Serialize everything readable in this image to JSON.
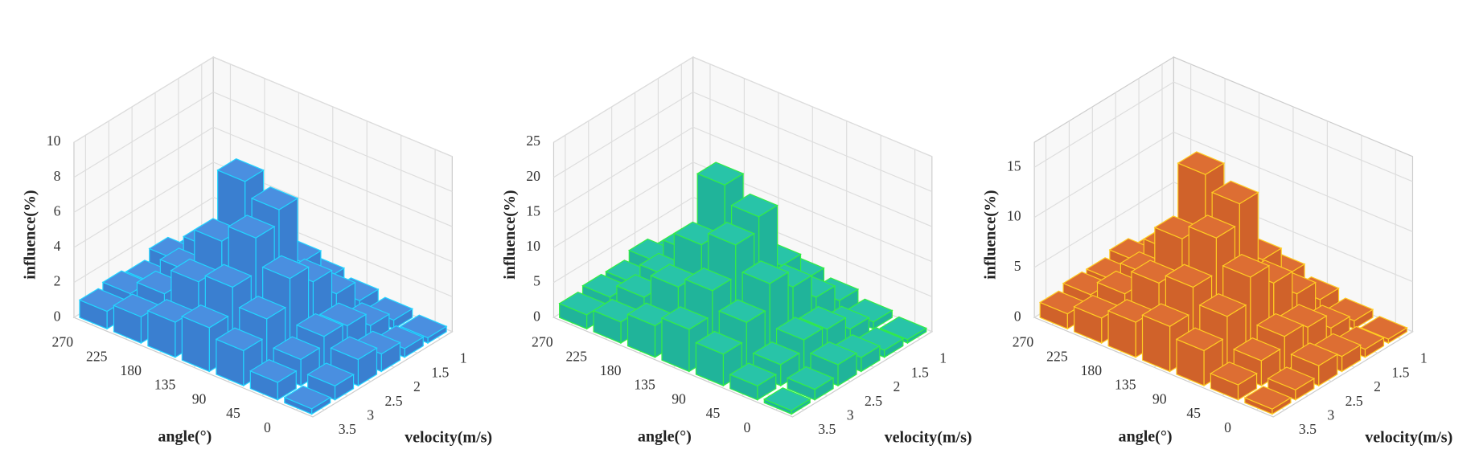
{
  "chart_data": [
    {
      "type": "bar3d",
      "x_label": "angle(°)",
      "y_label": "velocity(m/s)",
      "z_label": "influence(%)",
      "categories": [
        "0",
        "45",
        "90",
        "135",
        "180",
        "225",
        "270"
      ],
      "y_categories": [
        "3.5",
        "3",
        "2.5",
        "2",
        "1.5",
        "1"
      ],
      "values": [
        [
          0.3,
          1.0,
          2.0,
          2.5,
          2.0,
          1.5,
          1.0
        ],
        [
          0.8,
          1.5,
          3.0,
          4.0,
          3.5,
          2.0,
          1.2
        ],
        [
          1.5,
          2.0,
          4.5,
          6.0,
          5.0,
          2.5,
          1.0
        ],
        [
          1.0,
          1.8,
          3.5,
          6.8,
          7.6,
          3.0,
          1.5
        ],
        [
          0.5,
          1.0,
          2.0,
          3.0,
          3.2,
          1.5,
          0.8
        ],
        [
          0.3,
          0.5,
          0.8,
          1.2,
          1.0,
          0.6,
          0.4
        ]
      ],
      "zlim": [
        0,
        10
      ],
      "zticks": [
        0,
        2,
        4,
        6,
        8,
        10
      ],
      "color": "#3a7fd0",
      "top_color": "#4a8fe0",
      "edge_color": "#22d5ff"
    },
    {
      "type": "bar3d",
      "x_label": "angle(°)",
      "y_label": "velocity(m/s)",
      "z_label": "influence(%)",
      "categories": [
        "0",
        "45",
        "90",
        "135",
        "180",
        "225",
        "270"
      ],
      "y_categories": [
        "3.5",
        "3",
        "2.5",
        "2",
        "1.5",
        "1"
      ],
      "values": [
        [
          0.5,
          2.0,
          4.5,
          6.0,
          4.5,
          3.0,
          2.0
        ],
        [
          1.5,
          3.0,
          7.0,
          9.5,
          8.0,
          4.5,
          2.5
        ],
        [
          3.0,
          4.5,
          10.5,
          14.0,
          12.0,
          5.5,
          2.5
        ],
        [
          2.0,
          4.0,
          8.0,
          16.0,
          18.5,
          7.0,
          3.5
        ],
        [
          1.0,
          2.0,
          4.5,
          7.0,
          7.5,
          3.5,
          2.0
        ],
        [
          0.5,
          1.0,
          2.0,
          3.0,
          2.5,
          1.5,
          1.0
        ]
      ],
      "zlim": [
        0,
        25
      ],
      "zticks": [
        0,
        5,
        10,
        15,
        20,
        25
      ],
      "color": "#20b49a",
      "top_color": "#28c4a8",
      "edge_color": "#33ee44"
    },
    {
      "type": "bar3d",
      "x_label": "angle(°)",
      "y_label": "velocity(m/s)",
      "z_label": "influence(%)",
      "categories": [
        "0",
        "45",
        "90",
        "135",
        "180",
        "225",
        "270"
      ],
      "y_categories": [
        "3.5",
        "3",
        "2.5",
        "2",
        "1.5",
        "1"
      ],
      "values": [
        [
          0.5,
          1.5,
          3.5,
          4.5,
          3.5,
          2.5,
          1.5
        ],
        [
          1.0,
          2.5,
          5.5,
          7.0,
          6.0,
          3.5,
          2.0
        ],
        [
          2.0,
          3.5,
          8.0,
          10.5,
          9.0,
          4.0,
          2.0
        ],
        [
          1.5,
          3.0,
          6.0,
          12.5,
          14.0,
          5.0,
          2.5
        ],
        [
          0.8,
          1.5,
          3.5,
          5.5,
          5.5,
          2.5,
          1.5
        ],
        [
          0.4,
          0.8,
          1.5,
          2.5,
          2.0,
          1.0,
          0.8
        ]
      ],
      "zlim": [
        0,
        17.5
      ],
      "zticks": [
        0,
        5,
        10,
        15
      ],
      "color": "#d0622a",
      "top_color": "#dd6e33",
      "edge_color": "#ffcc22"
    }
  ]
}
